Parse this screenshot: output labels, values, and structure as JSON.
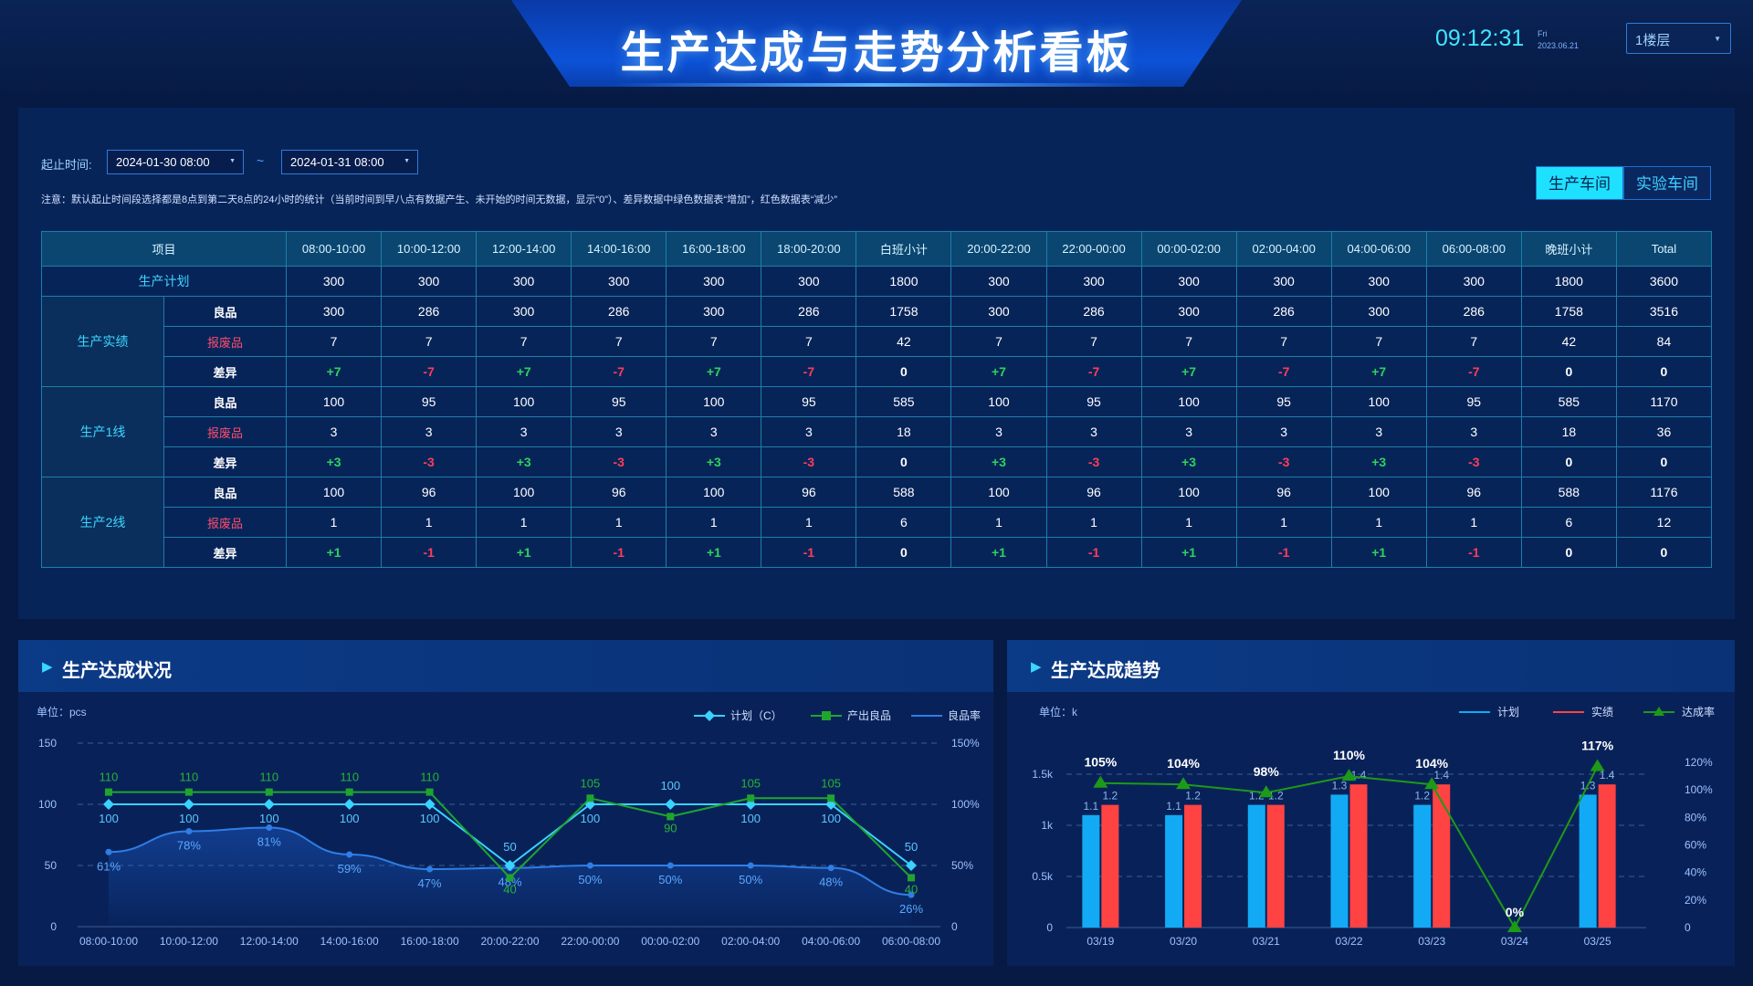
{
  "header": {
    "title": "生产达成与走势分析看板",
    "time": "09:12:31",
    "weekday": "Fri",
    "date": "2023.06.21",
    "floor_select": "1楼层"
  },
  "filter": {
    "label": "起止时间:",
    "start": "2024-01-30 08:00",
    "separator": "~",
    "end": "2024-01-31 08:00",
    "note": "注意：默认起止时间段选择都是8点到第二天8点的24小时的统计（当前时间到早八点有数据产生、未开始的时间无数据，显示“0”）、差异数据中绿色数据表“增加”，红色数据表“减少”",
    "workshops": [
      "生产车间",
      "实验车间"
    ]
  },
  "table": {
    "headers": [
      "项目",
      "08:00-10:00",
      "10:00-12:00",
      "12:00-14:00",
      "14:00-16:00",
      "16:00-18:00",
      "18:00-20:00",
      "白班小计",
      "20:00-22:00",
      "22:00-00:00",
      "00:00-02:00",
      "02:00-04:00",
      "04:00-06:00",
      "06:00-08:00",
      "晚班小计",
      "Total"
    ],
    "plan": {
      "label": "生产计划",
      "values": [
        "300",
        "300",
        "300",
        "300",
        "300",
        "300",
        "1800",
        "300",
        "300",
        "300",
        "300",
        "300",
        "300",
        "1800",
        "3600"
      ]
    },
    "groups": [
      {
        "label": "生产实绩",
        "rows": [
          {
            "label": "良品",
            "values": [
              "300",
              "286",
              "300",
              "286",
              "300",
              "286",
              "1758",
              "300",
              "286",
              "300",
              "286",
              "300",
              "286",
              "1758",
              "3516"
            ]
          },
          {
            "label": "报废品",
            "values": [
              "7",
              "7",
              "7",
              "7",
              "7",
              "7",
              "42",
              "7",
              "7",
              "7",
              "7",
              "7",
              "7",
              "42",
              "84"
            ]
          },
          {
            "label": "差异",
            "values": [
              "+7",
              "-7",
              "+7",
              "-7",
              "+7",
              "-7",
              "0",
              "+7",
              "-7",
              "+7",
              "-7",
              "+7",
              "-7",
              "0",
              "0"
            ]
          }
        ]
      },
      {
        "label": "生产1线",
        "rows": [
          {
            "label": "良品",
            "values": [
              "100",
              "95",
              "100",
              "95",
              "100",
              "95",
              "585",
              "100",
              "95",
              "100",
              "95",
              "100",
              "95",
              "585",
              "1170"
            ]
          },
          {
            "label": "报废品",
            "values": [
              "3",
              "3",
              "3",
              "3",
              "3",
              "3",
              "18",
              "3",
              "3",
              "3",
              "3",
              "3",
              "3",
              "18",
              "36"
            ]
          },
          {
            "label": "差异",
            "values": [
              "+3",
              "-3",
              "+3",
              "-3",
              "+3",
              "-3",
              "0",
              "+3",
              "-3",
              "+3",
              "-3",
              "+3",
              "-3",
              "0",
              "0"
            ]
          }
        ]
      },
      {
        "label": "生产2线",
        "rows": [
          {
            "label": "良品",
            "values": [
              "100",
              "96",
              "100",
              "96",
              "100",
              "96",
              "588",
              "100",
              "96",
              "100",
              "96",
              "100",
              "96",
              "588",
              "1176"
            ]
          },
          {
            "label": "报废品",
            "values": [
              "1",
              "1",
              "1",
              "1",
              "1",
              "1",
              "6",
              "1",
              "1",
              "1",
              "1",
              "1",
              "1",
              "6",
              "12"
            ]
          },
          {
            "label": "差异",
            "values": [
              "+1",
              "-1",
              "+1",
              "-1",
              "+1",
              "-1",
              "0",
              "+1",
              "-1",
              "+1",
              "-1",
              "+1",
              "-1",
              "0",
              "0"
            ]
          }
        ]
      }
    ]
  },
  "left_panel": {
    "title": "生产达成状况",
    "unit": "单位：pcs"
  },
  "right_panel": {
    "title": "生产达成趋势",
    "unit": "单位：k"
  },
  "colors": {
    "plan": "#3ad2ff",
    "output": "#1fa52e",
    "rate": "#2f7ee6",
    "bar_plan": "#12aaf5",
    "bar_actual": "#ff4343",
    "trend_line": "#1d9a18"
  },
  "chart_data": [
    {
      "type": "line",
      "title": "生产达成状况",
      "unit": "单位：pcs",
      "categories": [
        "08:00-10:00",
        "10:00-12:00",
        "12:00-14:00",
        "14:00-16:00",
        "16:00-18:00",
        "20:00-22:00",
        "22:00-00:00",
        "00:00-02:00",
        "02:00-04:00",
        "04:00-06:00",
        "06:00-08:00"
      ],
      "series": [
        {
          "name": "计划（C）",
          "axis": "left",
          "values": [
            100,
            100,
            100,
            100,
            100,
            50,
            100,
            100,
            100,
            100,
            50
          ]
        },
        {
          "name": "产出良品",
          "axis": "left",
          "values": [
            110,
            110,
            110,
            110,
            110,
            40,
            105,
            90,
            105,
            105,
            40
          ]
        },
        {
          "name": "良品率",
          "axis": "right",
          "values": [
            61,
            78,
            81,
            59,
            47,
            48,
            50,
            50,
            50,
            48,
            26
          ]
        }
      ],
      "ylim_left": [
        0,
        150
      ],
      "yticks_left": [
        "0",
        "50",
        "100",
        "150"
      ],
      "ylim_right": [
        0,
        150
      ],
      "yticks_right": [
        "0",
        "50%",
        "100%",
        "150%"
      ]
    },
    {
      "type": "bar",
      "title": "生产达成趋势",
      "unit": "单位：k",
      "categories": [
        "03/19",
        "03/20",
        "03/21",
        "03/22",
        "03/23",
        "03/24",
        "03/25"
      ],
      "series": [
        {
          "name": "计划",
          "axis": "left",
          "values": [
            1.1,
            1.1,
            1.2,
            1.3,
            1.2,
            0,
            1.3
          ]
        },
        {
          "name": "实绩",
          "axis": "left",
          "values": [
            1.2,
            1.2,
            1.2,
            1.4,
            1.4,
            0,
            1.4
          ]
        },
        {
          "name": "达成率",
          "axis": "right",
          "type": "line",
          "values": [
            105,
            104,
            98,
            110,
            104,
            0,
            117
          ]
        }
      ],
      "ylim_left": [
        0,
        1.75
      ],
      "yticks_left": [
        "0",
        "0.5k",
        "1k",
        "1.5k"
      ],
      "ylim_right": [
        0,
        130
      ],
      "yticks_right": [
        "0",
        "20%",
        "40%",
        "60%",
        "80%",
        "100%",
        "120%"
      ]
    }
  ]
}
